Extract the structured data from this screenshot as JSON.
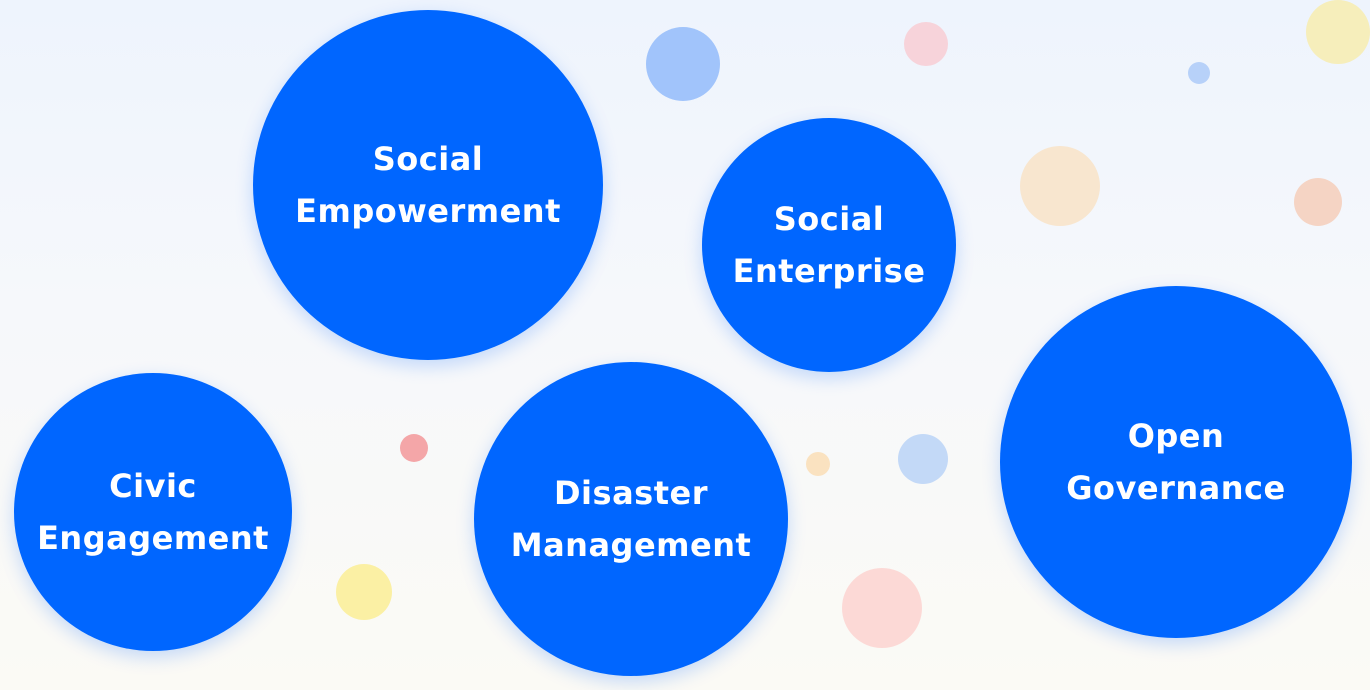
{
  "colors": {
    "bubble": "#0066ff",
    "text": "#ffffff"
  },
  "bubbles": [
    {
      "label": "Social\nEmpowerment"
    },
    {
      "label": "Social\nEnterprise"
    },
    {
      "label": "Civic\nEngagement"
    },
    {
      "label": "Disaster\nManagement"
    },
    {
      "label": "Open\nGovernance"
    }
  ]
}
